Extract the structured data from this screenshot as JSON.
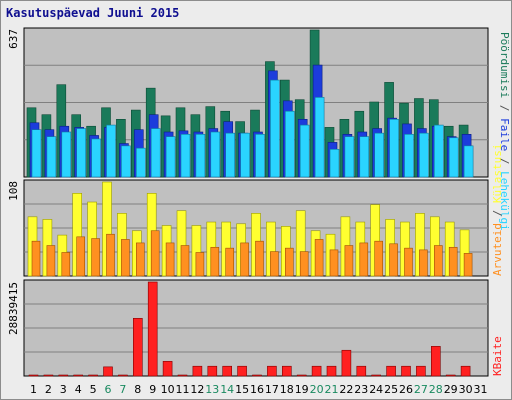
{
  "title": "Kasutuspäevad Juuni 2015",
  "colors": {
    "hits": "#1a7a5a",
    "files": "#1c3cdc",
    "pages": "#2ad4ff",
    "visits": "#ffff30",
    "sites": "#ff9020",
    "kbytes": "#ff2020",
    "plot_bg": "#c0c0c0",
    "weekend_label": "#1a8a60",
    "weekday_label": "#000000"
  },
  "chart_data": [
    {
      "type": "bar",
      "panel": "top",
      "ylim": [
        0,
        637
      ],
      "y_tick_label": "637",
      "right_labels": [
        "Pöördumisi",
        "Faile",
        "Lehekülgi"
      ],
      "categories": [
        "1",
        "2",
        "3",
        "4",
        "5",
        "6",
        "7",
        "8",
        "9",
        "10",
        "11",
        "12",
        "13",
        "14",
        "15",
        "16",
        "17",
        "18",
        "19",
        "20",
        "21",
        "22",
        "23",
        "24",
        "25",
        "26",
        "27",
        "28",
        "29",
        "30",
        "31"
      ],
      "series": [
        {
          "name": "Pöördumisi",
          "values": [
            300,
            270,
            400,
            270,
            220,
            300,
            250,
            290,
            385,
            265,
            300,
            270,
            305,
            285,
            240,
            290,
            500,
            420,
            335,
            637,
            215,
            250,
            285,
            325,
            410,
            320,
            340,
            335,
            220,
            225,
            0
          ]
        },
        {
          "name": "Faile",
          "values": [
            235,
            205,
            220,
            215,
            180,
            215,
            145,
            205,
            270,
            195,
            200,
            195,
            210,
            240,
            190,
            195,
            460,
            330,
            250,
            485,
            150,
            185,
            195,
            210,
            255,
            230,
            210,
            220,
            175,
            185,
            0
          ]
        },
        {
          "name": "Lehekülgi",
          "values": [
            205,
            175,
            195,
            210,
            165,
            225,
            135,
            125,
            210,
            175,
            185,
            185,
            195,
            190,
            190,
            185,
            420,
            285,
            225,
            345,
            120,
            175,
            175,
            190,
            250,
            185,
            190,
            225,
            170,
            135,
            0
          ]
        }
      ]
    },
    {
      "type": "bar",
      "panel": "middle",
      "ylim": [
        0,
        108
      ],
      "y_tick_label": "108",
      "right_labels": [
        "Külastusi",
        "Arvuteid"
      ],
      "categories": [
        "1",
        "2",
        "3",
        "4",
        "5",
        "6",
        "7",
        "8",
        "9",
        "10",
        "11",
        "12",
        "13",
        "14",
        "15",
        "16",
        "17",
        "18",
        "19",
        "20",
        "21",
        "22",
        "23",
        "24",
        "25",
        "26",
        "27",
        "28",
        "29",
        "30",
        "31"
      ],
      "series": [
        {
          "name": "Külastusi",
          "values": [
            68,
            65,
            47,
            95,
            85,
            108,
            72,
            52,
            95,
            58,
            75,
            58,
            62,
            62,
            60,
            72,
            62,
            57,
            75,
            52,
            48,
            68,
            62,
            82,
            65,
            62,
            72,
            68,
            62,
            53,
            0
          ]
        },
        {
          "name": "Arvuteid",
          "values": [
            40,
            35,
            27,
            45,
            43,
            48,
            42,
            38,
            52,
            38,
            35,
            27,
            33,
            32,
            38,
            40,
            28,
            32,
            28,
            42,
            30,
            35,
            38,
            40,
            37,
            32,
            30,
            35,
            33,
            26,
            0
          ]
        }
      ]
    },
    {
      "type": "bar",
      "panel": "bottom",
      "ylim": [
        0,
        28839415
      ],
      "y_tick_label": "28839415",
      "right_labels": [
        "KBaite"
      ],
      "categories": [
        "1",
        "2",
        "3",
        "4",
        "5",
        "6",
        "7",
        "8",
        "9",
        "10",
        "11",
        "12",
        "13",
        "14",
        "15",
        "16",
        "17",
        "18",
        "19",
        "20",
        "21",
        "22",
        "23",
        "24",
        "25",
        "26",
        "27",
        "28",
        "29",
        "30",
        "31"
      ],
      "weekend_days": [
        "6",
        "7",
        "13",
        "14",
        "20",
        "21",
        "27",
        "28"
      ],
      "series": [
        {
          "name": "KBaite",
          "values": [
            300000,
            300000,
            300000,
            300000,
            300000,
            2800000,
            300000,
            17700000,
            28839415,
            4500000,
            300000,
            3000000,
            3000000,
            3000000,
            3000000,
            300000,
            3000000,
            3000000,
            300000,
            3000000,
            3000000,
            7900000,
            3000000,
            300000,
            3000000,
            3000000,
            3000000,
            9100000,
            300000,
            3000000,
            0
          ]
        }
      ]
    }
  ]
}
